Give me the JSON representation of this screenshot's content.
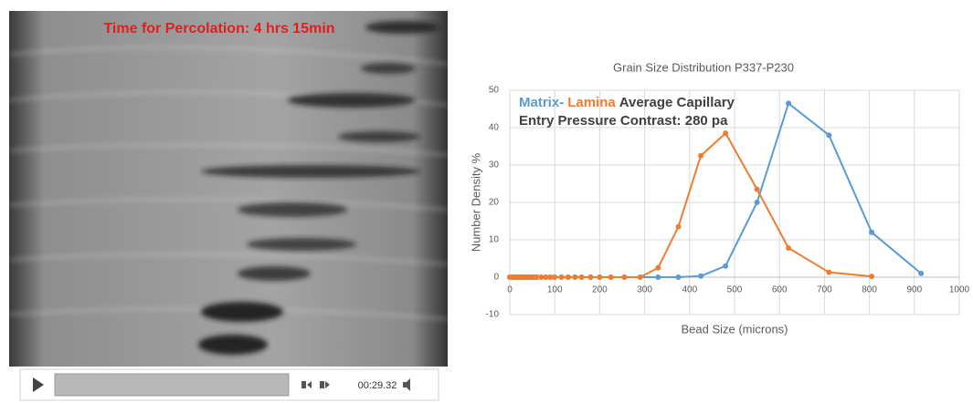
{
  "video": {
    "overlay_text": "Time for Percolation: 4 hrs 15min",
    "time": "00:29.32"
  },
  "chart_data": {
    "type": "line",
    "title": "Grain Size Distribution P337-P230",
    "x_label": "Bead Size (microns)",
    "y_label": "Number Density %",
    "annotation": {
      "line1": [
        "Matrix",
        "-",
        "Lamina",
        "Average Capillary"
      ],
      "line2": "Entry Pressure Contrast: 280 pa"
    },
    "x": [
      0,
      5,
      10,
      15,
      20,
      25,
      30,
      35,
      40,
      45,
      50,
      55,
      60,
      70,
      80,
      90,
      100,
      115,
      130,
      145,
      160,
      180,
      200,
      225,
      255,
      290,
      330,
      375,
      425,
      480,
      550,
      620,
      710,
      805,
      915
    ],
    "series": [
      {
        "name": "Matrix",
        "color": "#5b9bd5",
        "values": [
          0,
          0,
          0,
          0,
          0,
          0,
          0,
          0,
          0,
          0,
          0,
          0,
          0,
          0,
          0,
          0,
          0,
          0,
          0,
          0,
          0,
          0,
          0,
          0,
          0,
          0,
          0,
          0,
          0.3,
          3,
          20,
          46.5,
          38,
          12,
          1
        ]
      },
      {
        "name": "Lamina",
        "color": "#ed7d31",
        "values": [
          0,
          0,
          0,
          0,
          0,
          0,
          0,
          0,
          0,
          0,
          0,
          0,
          0,
          0,
          0,
          0,
          0,
          0,
          0,
          0,
          0,
          0,
          0,
          0,
          0,
          0,
          2.5,
          13.5,
          32.5,
          38.5,
          23.5,
          7.8,
          1.3,
          0.2,
          null
        ]
      }
    ],
    "xlim": [
      0,
      1000
    ],
    "xticks": [
      0,
      100,
      200,
      300,
      400,
      500,
      600,
      700,
      800,
      900,
      1000
    ],
    "ylim": [
      -10,
      50
    ],
    "yticks": [
      -10,
      0,
      10,
      20,
      30,
      40,
      50
    ],
    "grid": true
  }
}
